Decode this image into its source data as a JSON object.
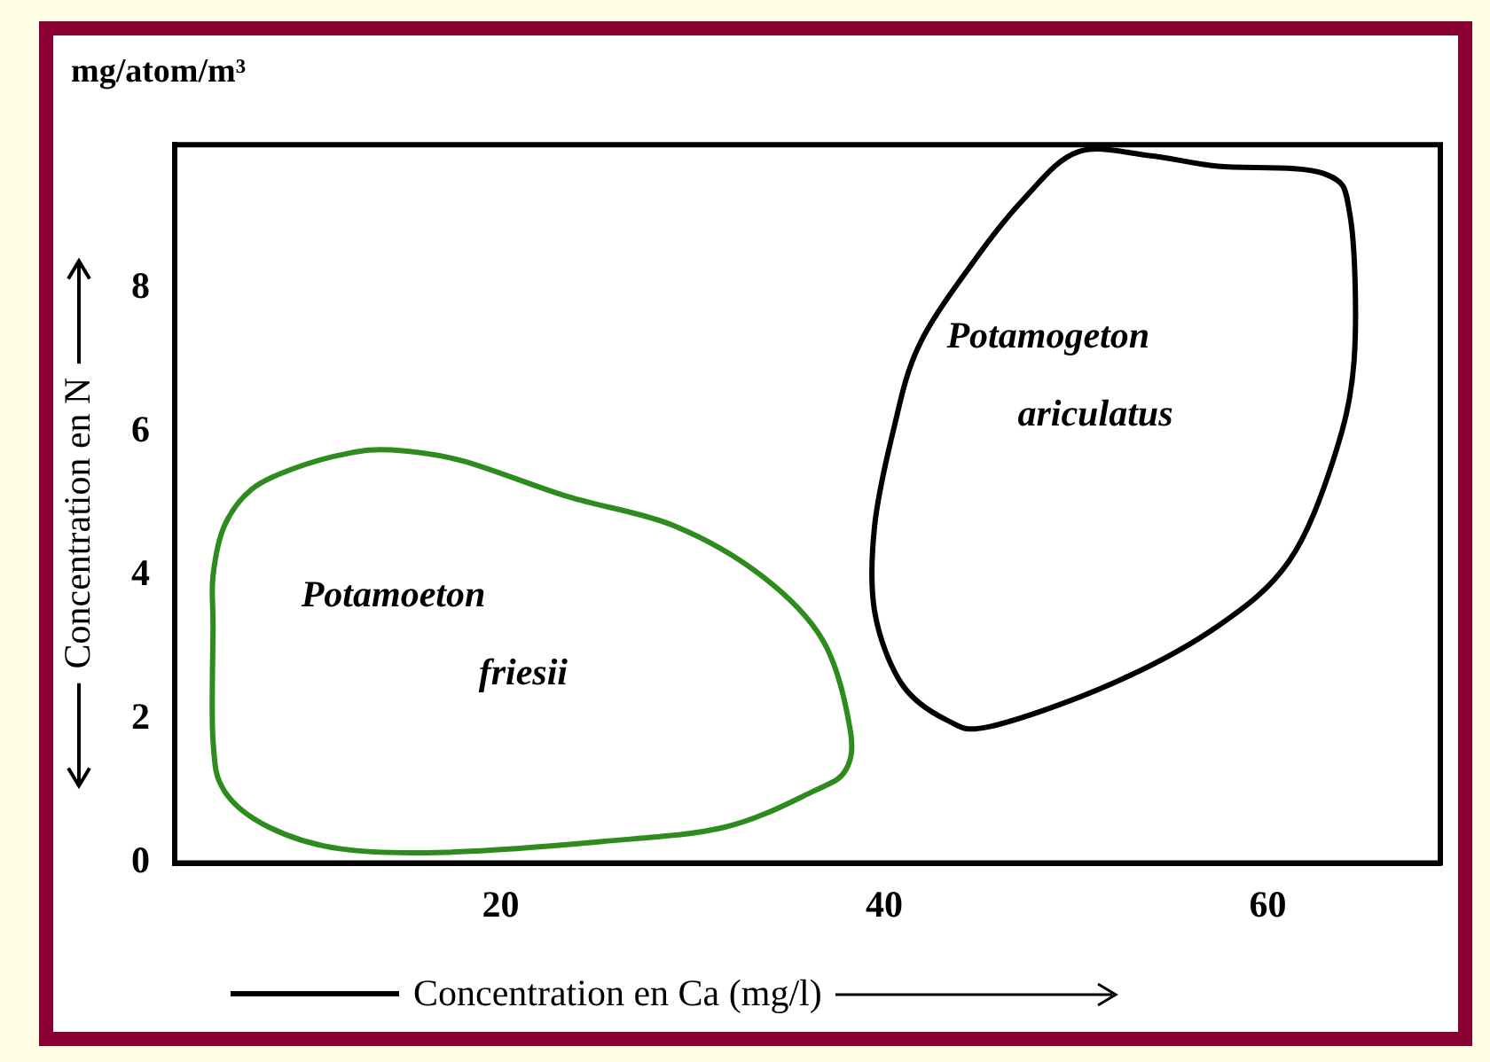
{
  "chart_data": {
    "type": "line",
    "xlabel": "Concentration en Ca (mg/l)",
    "ylabel": "Concentration en N",
    "annotations": [
      "mg/atom/m³",
      "Potamoeton friesii",
      "Potamogeton ariculatus"
    ],
    "xlim": [
      3,
      69
    ],
    "xticks": [
      20,
      40,
      60
    ],
    "ylim": [
      0,
      10
    ],
    "yticks": [
      0,
      2,
      4,
      6,
      8
    ],
    "grid": false
  }
}
